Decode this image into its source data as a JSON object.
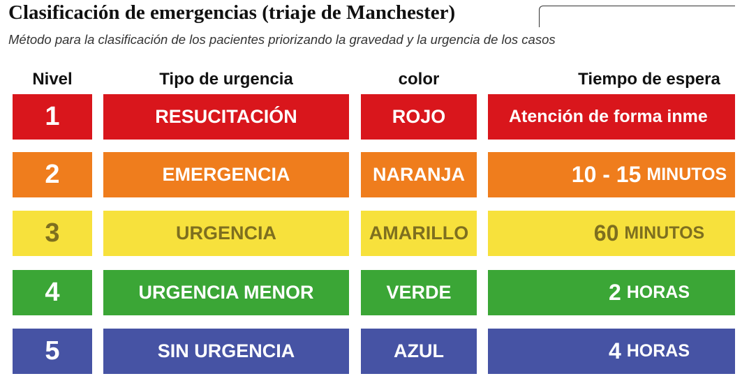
{
  "header": {
    "title": "Clasificación de emergencias (triaje de Manchester)",
    "subtitle": "Método para la clasificación de los pacientes priorizando la gravedad y la urgencia de los casos"
  },
  "table": {
    "columns": [
      "Nivel",
      "Tipo de urgencia",
      "color",
      "Tiempo de espera"
    ],
    "rows": [
      {
        "level": 1,
        "type": "RESUCITACIÓN",
        "color": "ROJO",
        "time": {
          "text": "Atención de forma inme"
        },
        "fill": "#d9161c",
        "ink": "#ffffff"
      },
      {
        "level": 2,
        "type": "EMERGENCIA",
        "color": "NARANJA",
        "time": {
          "number": "10 - 15",
          "unit": "MINUTOS"
        },
        "fill": "#ef7d1d",
        "ink": "#ffffff"
      },
      {
        "level": 3,
        "type": "URGENCIA",
        "color": "AMARILLO",
        "time": {
          "number": "60",
          "unit": "MINUTOS"
        },
        "fill": "#f7e13c",
        "ink": "#7e6f1f"
      },
      {
        "level": 4,
        "type": "URGENCIA MENOR",
        "color": "VERDE",
        "time": {
          "number": "2",
          "unit": "HORAS"
        },
        "fill": "#3ba636",
        "ink": "#ffffff"
      },
      {
        "level": 5,
        "type": "SIN URGENCIA",
        "color": "AZUL",
        "time": {
          "number": "4",
          "unit": "HORAS"
        },
        "fill": "#4653a4",
        "ink": "#ffffff"
      }
    ]
  }
}
